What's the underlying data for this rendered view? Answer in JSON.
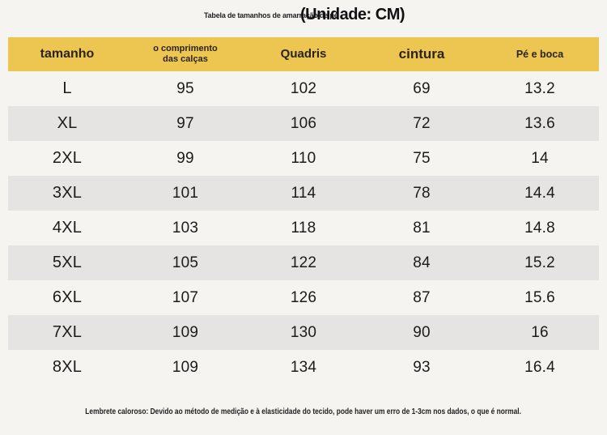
{
  "title": {
    "subtitle": "Tabela de tamanhos de amarração de pé",
    "unit": "(Unidade: CM)"
  },
  "table": {
    "columns": [
      "tamanho",
      "o comprimento\ndas calças",
      "Quadris",
      "cintura",
      "Pé e boca"
    ],
    "rows": [
      {
        "size": "L",
        "values": [
          "95",
          "102",
          "69",
          "13.2"
        ]
      },
      {
        "size": "XL",
        "values": [
          "97",
          "106",
          "72",
          "13.6"
        ]
      },
      {
        "size": "2XL",
        "values": [
          "99",
          "110",
          "75",
          "14"
        ]
      },
      {
        "size": "3XL",
        "values": [
          "101",
          "114",
          "78",
          "14.4"
        ]
      },
      {
        "size": "4XL",
        "values": [
          "103",
          "118",
          "81",
          "14.8"
        ]
      },
      {
        "size": "5XL",
        "values": [
          "105",
          "122",
          "84",
          "15.2"
        ]
      },
      {
        "size": "6XL",
        "values": [
          "107",
          "126",
          "87",
          "15.6"
        ]
      },
      {
        "size": "7XL",
        "values": [
          "109",
          "130",
          "90",
          "16"
        ]
      },
      {
        "size": "8XL",
        "values": [
          "109",
          "134",
          "93",
          "16.4"
        ]
      }
    ]
  },
  "note": "Lembrete caloroso: Devido ao método de medição e à elasticidade do tecido, pode haver um erro de 1-3cm nos dados, o que é normal.",
  "colors": {
    "header_yellow": "#edc551",
    "stripe_gray": "#e5e4e2",
    "background": "#f5f4f1",
    "text": "#1b1b1b"
  }
}
